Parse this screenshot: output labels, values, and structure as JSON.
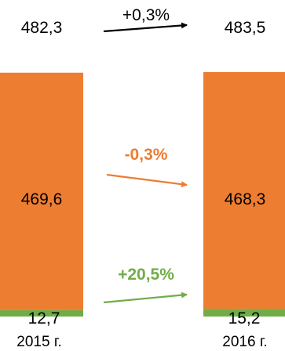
{
  "chart_data": {
    "type": "bar",
    "stacked": true,
    "categories": [
      "2015 г.",
      "2016 г."
    ],
    "series": [
      {
        "values": [
          12.7,
          15.2
        ],
        "color": "#70AD47"
      },
      {
        "values": [
          469.6,
          468.3
        ],
        "color": "#ED7D31"
      }
    ],
    "segment_labels": [
      [
        "12,7",
        "469,6"
      ],
      [
        "15,2",
        "468,3"
      ]
    ],
    "totals": [
      482.3,
      483.5
    ],
    "total_labels": [
      "482,3",
      "483,5"
    ],
    "changes": [
      {
        "label": "+0,3%",
        "color": "#000000"
      },
      {
        "label": "-0,3%",
        "color": "#ED7D31"
      },
      {
        "label": "+20,5%",
        "color": "#70AD47"
      }
    ],
    "ylim": [
      0,
      483.5
    ],
    "grid": false,
    "legend": "none",
    "title": "",
    "xlabel": "",
    "ylabel": ""
  }
}
